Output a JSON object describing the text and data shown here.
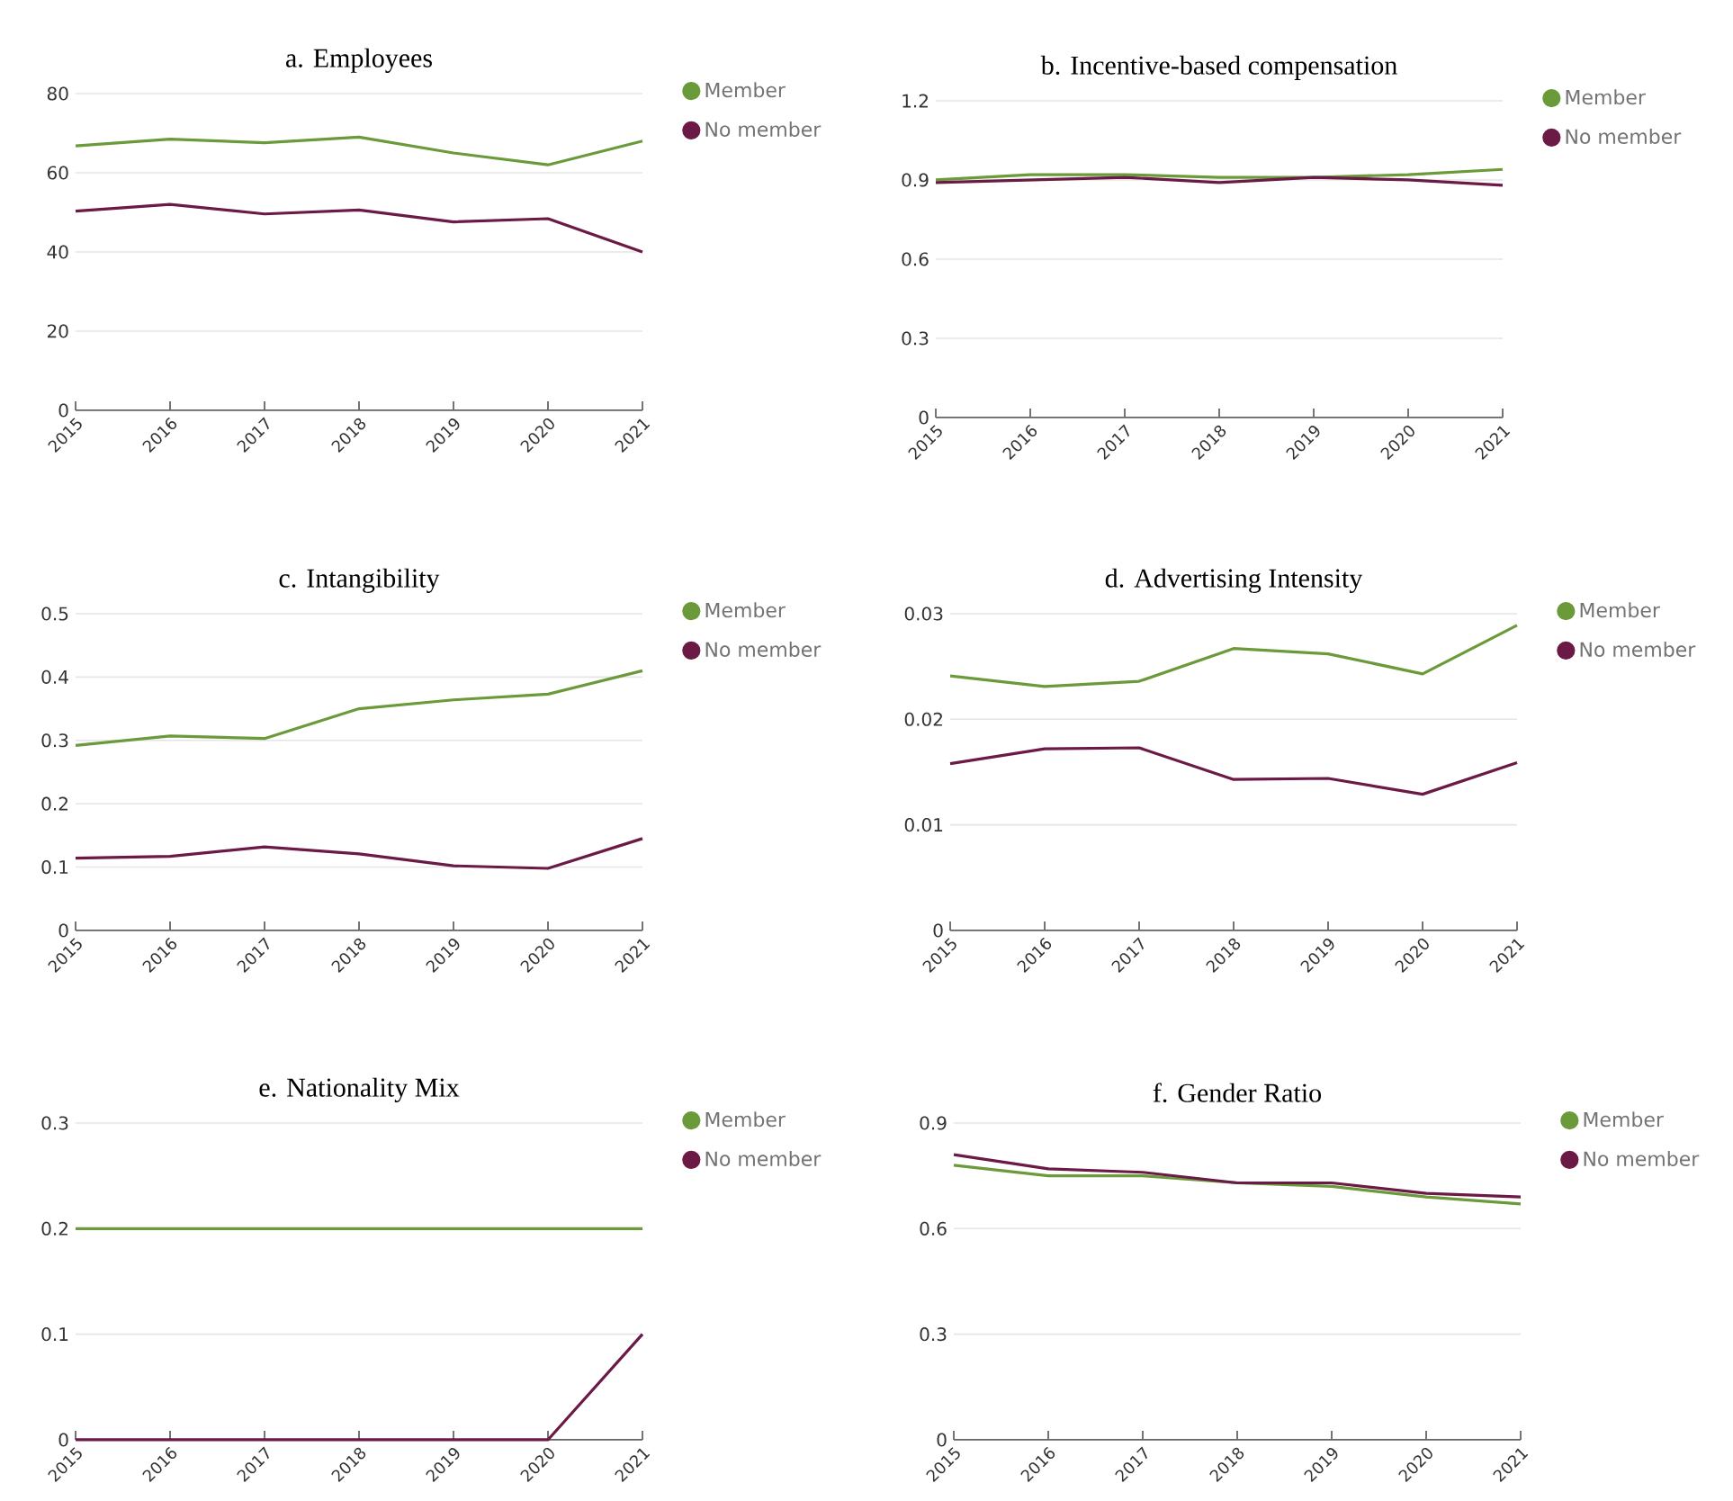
{
  "chart_data": [
    {
      "type": "line",
      "title": "a.    Employees",
      "categories": [
        "2015",
        "2016",
        "2017",
        "2018",
        "2019",
        "2020",
        "2021"
      ],
      "ylim": [
        0,
        80
      ],
      "yticks": [
        0,
        20,
        40,
        60,
        80
      ],
      "grid": "y",
      "legend": "right",
      "series": [
        {
          "name": "Member",
          "color": "#6a9a3a",
          "values": [
            66.8,
            68.5,
            67.6,
            69,
            65,
            62,
            68
          ]
        },
        {
          "name": "No member",
          "color": "#6b1a45",
          "values": [
            50.3,
            52,
            49.6,
            50.6,
            47.6,
            48.4,
            40
          ]
        }
      ]
    },
    {
      "type": "line",
      "title": "b. Incentive-based compensation",
      "categories": [
        "2015",
        "2016",
        "2017",
        "2018",
        "2019",
        "2020",
        "2021"
      ],
      "ylim": [
        0,
        1.2
      ],
      "yticks": [
        0,
        0.3,
        0.6,
        0.9,
        1.2
      ],
      "grid": "y",
      "legend": "right",
      "series": [
        {
          "name": "Member",
          "color": "#6a9a3a",
          "values": [
            0.9,
            0.92,
            0.92,
            0.91,
            0.91,
            0.92,
            0.94
          ]
        },
        {
          "name": "No member",
          "color": "#6b1a45",
          "values": [
            0.89,
            0.9,
            0.91,
            0.89,
            0.91,
            0.9,
            0.88
          ]
        }
      ]
    },
    {
      "type": "line",
      "title": "c.    Intangibility",
      "categories": [
        "2015",
        "2016",
        "2017",
        "2018",
        "2019",
        "2020",
        "2021"
      ],
      "ylim": [
        0,
        0.5
      ],
      "yticks": [
        0,
        0.1,
        0.2,
        0.3,
        0.4,
        0.5
      ],
      "grid": "y",
      "legend": "right",
      "series": [
        {
          "name": "Member",
          "color": "#6a9a3a",
          "values": [
            0.292,
            0.307,
            0.303,
            0.35,
            0.364,
            0.373,
            0.41
          ]
        },
        {
          "name": "No member",
          "color": "#6b1a45",
          "values": [
            0.114,
            0.117,
            0.132,
            0.121,
            0.102,
            0.098,
            0.145
          ]
        }
      ]
    },
    {
      "type": "line",
      "title": "d. Advertising Intensity",
      "categories": [
        "2015",
        "2016",
        "2017",
        "2018",
        "2019",
        "2020",
        "2021"
      ],
      "ylim": [
        0,
        0.03
      ],
      "yticks": [
        0,
        0.01,
        0.02,
        0.03
      ],
      "grid": "y",
      "legend": "right",
      "series": [
        {
          "name": "Member",
          "color": "#6a9a3a",
          "values": [
            0.0241,
            0.0231,
            0.0236,
            0.0267,
            0.0262,
            0.0243,
            0.0289
          ]
        },
        {
          "name": "No member",
          "color": "#6b1a45",
          "values": [
            0.0158,
            0.0172,
            0.0173,
            0.0143,
            0.0144,
            0.0129,
            0.0159
          ]
        }
      ]
    },
    {
      "type": "line",
      "title": "e.    Nationality Mix",
      "categories": [
        "2015",
        "2016",
        "2017",
        "2018",
        "2019",
        "2020",
        "2021"
      ],
      "ylim": [
        0,
        0.3
      ],
      "yticks": [
        0,
        0.1,
        0.2,
        0.3
      ],
      "grid": "y",
      "legend": "right",
      "series": [
        {
          "name": "Member",
          "color": "#6a9a3a",
          "values": [
            0.2,
            0.2,
            0.2,
            0.2,
            0.2,
            0.2,
            0.2
          ]
        },
        {
          "name": "No member",
          "color": "#6b1a45",
          "values": [
            0,
            0,
            0,
            0,
            0,
            0,
            0.1
          ]
        }
      ]
    },
    {
      "type": "line",
      "title": "f. Gender Ratio",
      "categories": [
        "2015",
        "2016",
        "2017",
        "2018",
        "2019",
        "2020",
        "2021"
      ],
      "ylim": [
        0,
        0.9
      ],
      "yticks": [
        0,
        0.3,
        0.6,
        0.9
      ],
      "grid": "y",
      "legend": "right",
      "series": [
        {
          "name": "Member",
          "color": "#6a9a3a",
          "values": [
            0.78,
            0.75,
            0.75,
            0.73,
            0.72,
            0.69,
            0.67
          ]
        },
        {
          "name": "No member",
          "color": "#6b1a45",
          "values": [
            0.81,
            0.77,
            0.76,
            0.73,
            0.73,
            0.7,
            0.69
          ]
        }
      ]
    }
  ]
}
